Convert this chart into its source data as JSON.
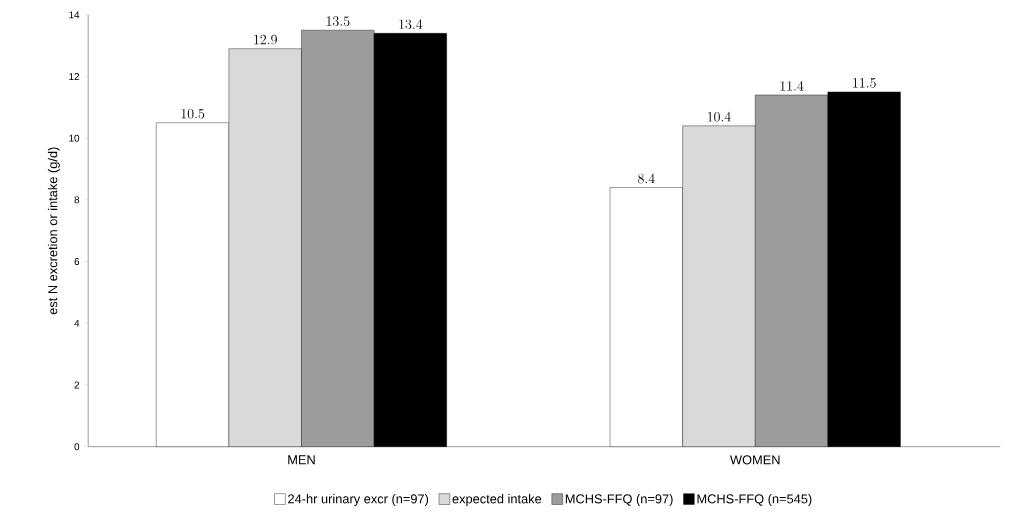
{
  "chart_data": {
    "type": "bar",
    "ylabel": "est N excretion or intake (g/d)",
    "categories": [
      "MEN",
      "WOMEN"
    ],
    "series": [
      {
        "name": "24-hr urinary excr (n=97)",
        "color": "#ffffff",
        "values": [
          10.5,
          8.4
        ]
      },
      {
        "name": "expected intake",
        "color": "#d9d9d9",
        "values": [
          12.9,
          10.4
        ]
      },
      {
        "name": "MCHS-FFQ (n=97)",
        "color": "#9c9c9c",
        "values": [
          13.5,
          11.4
        ]
      },
      {
        "name": "MCHS-FFQ (n=545)",
        "color": "#000000",
        "values": [
          13.4,
          11.5
        ]
      }
    ],
    "ylim": [
      0,
      14
    ],
    "yticks": [
      0,
      2,
      4,
      6,
      8,
      10,
      12,
      14
    ],
    "data_labels": true,
    "legend": "bottom"
  }
}
